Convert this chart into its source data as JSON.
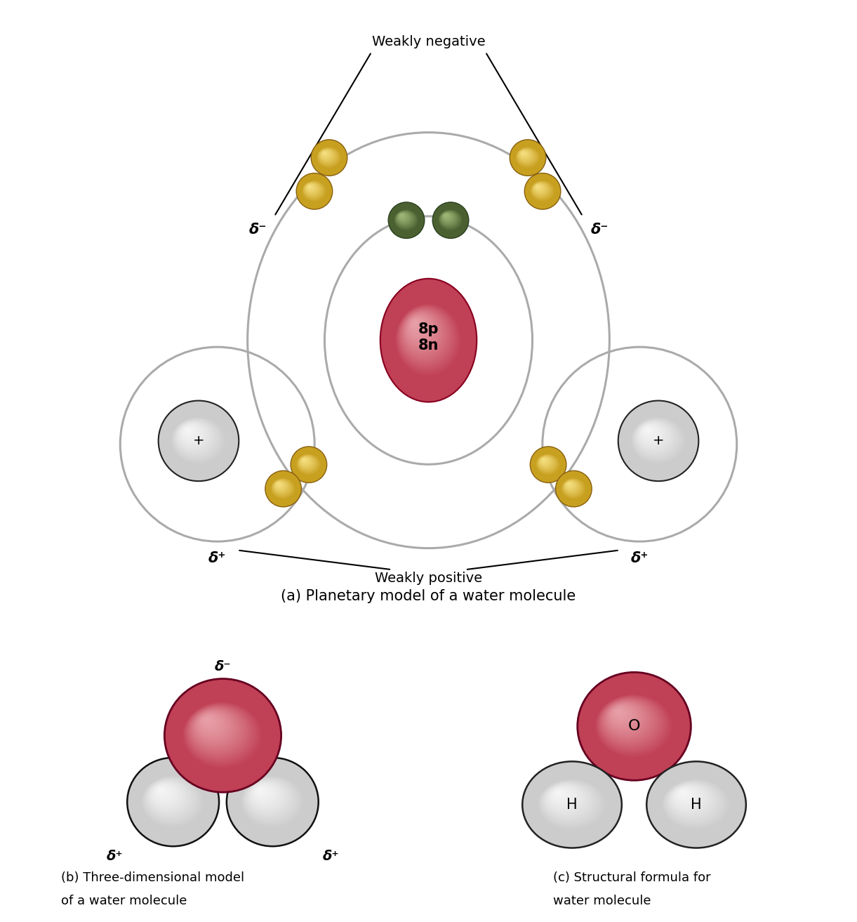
{
  "bg_color": "#ffffff",
  "oxygen_color_dark": "#c04055",
  "oxygen_color_mid": "#d06070",
  "oxygen_color_light": "#e8a0a8",
  "hydrogen_color_dark": "#cccccc",
  "hydrogen_color_light": "#f5f5f5",
  "electron_yellow_dark": "#c8a020",
  "electron_yellow_mid": "#e8c840",
  "electron_yellow_light": "#f5df80",
  "electron_green_dark": "#4a6030",
  "electron_green_mid": "#708050",
  "electron_green_light": "#a0b878",
  "orbit_color": "#aaaaaa",
  "orbit_lw": 2.2,
  "panel_a_caption": "(a) Planetary model of a water molecule",
  "panel_b_caption_line1": "(b) Three-dimensional model",
  "panel_b_caption_line2": "of a water molecule",
  "panel_c_caption_line1": "(c) Structural formula for",
  "panel_c_caption_line2": "water molecule",
  "weakly_negative": "Weakly negative",
  "weakly_positive": "Weakly positive",
  "nucleus_label": "8p\n8n",
  "delta_minus": "δ⁻",
  "delta_plus": "δ⁺",
  "O_label": "O",
  "H_label": "H",
  "plus_label": "+"
}
